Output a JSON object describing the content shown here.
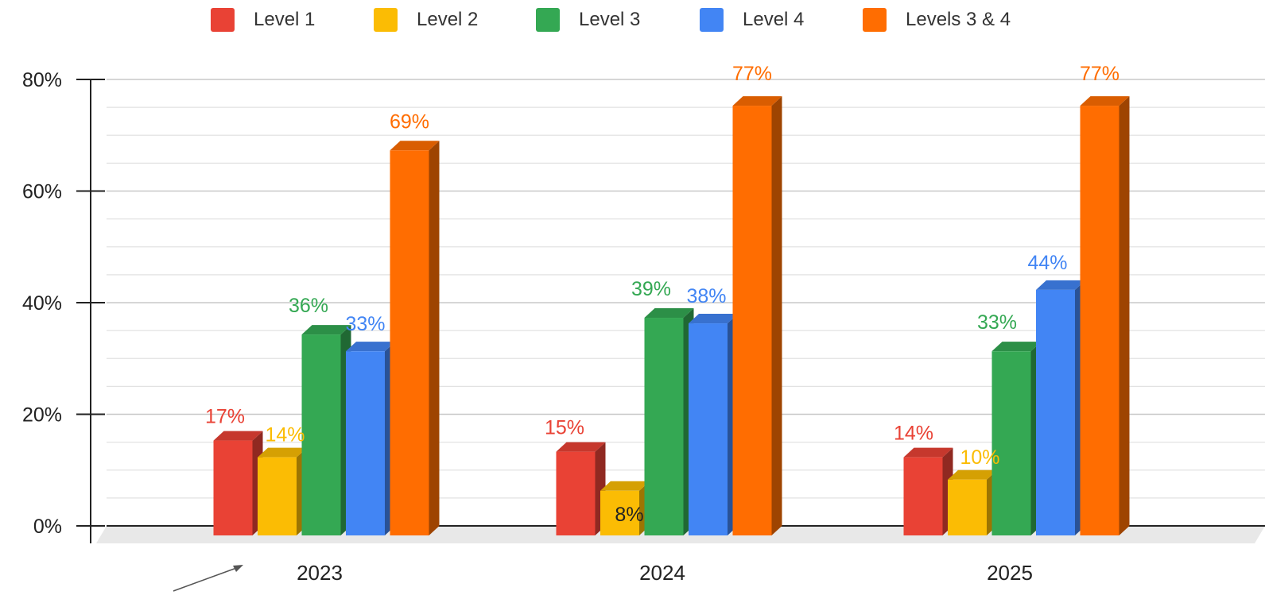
{
  "chart_data": {
    "type": "bar",
    "title": "",
    "xlabel": "",
    "ylabel": "",
    "ylim": [
      0,
      80
    ],
    "yticks": [
      0,
      20,
      40,
      60,
      80
    ],
    "ytick_labels": [
      "0%",
      "20%",
      "40%",
      "60%",
      "80%"
    ],
    "grid": true,
    "legend_position": "top",
    "style": "3d-columns",
    "categories": [
      "2023",
      "2024",
      "2025"
    ],
    "series": [
      {
        "name": "Level 1",
        "color": "#e94235",
        "values": [
          17,
          15,
          14
        ],
        "labels": [
          "17%",
          "15%",
          "14%"
        ]
      },
      {
        "name": "Level 2",
        "color": "#fbbc04",
        "values": [
          14,
          8,
          10
        ],
        "labels": [
          "14%",
          "8%",
          "10%"
        ]
      },
      {
        "name": "Level 3",
        "color": "#34a853",
        "values": [
          36,
          39,
          33
        ],
        "labels": [
          "36%",
          "39%",
          "33%"
        ]
      },
      {
        "name": "Level 4",
        "color": "#4285f4",
        "values": [
          33,
          38,
          44
        ],
        "labels": [
          "33%",
          "38%",
          "44%"
        ]
      },
      {
        "name": "Levels 3 & 4",
        "color": "#ff6d01",
        "values": [
          69,
          77,
          77
        ],
        "labels": [
          "69%",
          "77%",
          "77%"
        ]
      }
    ]
  }
}
